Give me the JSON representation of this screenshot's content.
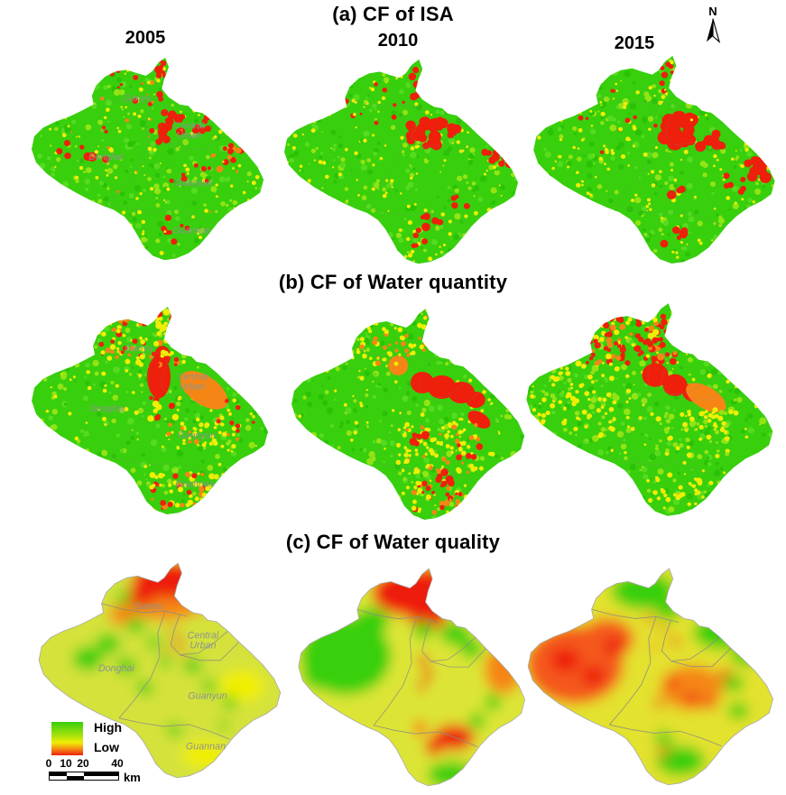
{
  "figure_titles": {
    "a": "(a) CF of ISA",
    "b": "(b) CF of Water quantity",
    "c": "(c) CF of Water quality"
  },
  "years": [
    "2005",
    "2010",
    "2015"
  ],
  "north_label": "N",
  "region_labels": [
    "Ganyu",
    "Central Urban",
    "Donghai",
    "Guanyun",
    "Guannan"
  ],
  "legend": {
    "high_label": "High",
    "low_label": "Low"
  },
  "scalebar": {
    "tick_labels": [
      "0",
      "10",
      "20",
      "40"
    ],
    "unit_label": "km"
  },
  "colors": {
    "green": "#38cf0d",
    "green_light": "#55dc1e",
    "green_dark": "#2ac206",
    "yellow_green": "#93e414",
    "yellow": "#f0ee06",
    "orange": "#f58616",
    "red": "#ee1f0b",
    "red_orange": "#f4581a",
    "label_gray": "#8d948e",
    "boundary_gray": "#8a8a8a",
    "legend_gradient": [
      "#38cf0d",
      "#9fe00c",
      "#f0ee06",
      "#f58616",
      "#ee1f0b"
    ]
  }
}
